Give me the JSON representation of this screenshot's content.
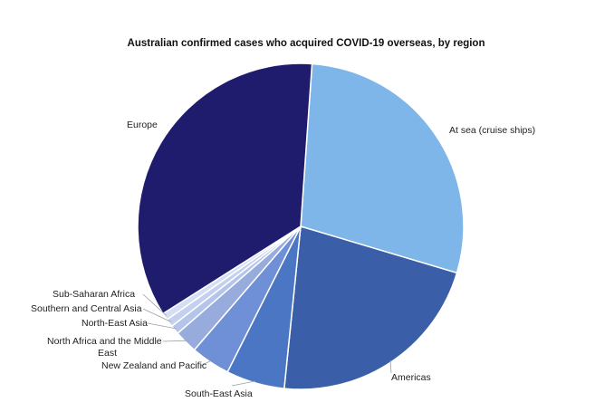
{
  "chart_data": {
    "type": "pie",
    "title": "Australian confirmed cases who acquired COVID-19 overseas, by region",
    "start_angle_deg": 4,
    "slices": [
      {
        "label": "At sea (cruise ships)",
        "value": 28.5,
        "color": "#7fb6ea"
      },
      {
        "label": "Americas",
        "value": 22.0,
        "color": "#3a5fa8"
      },
      {
        "label": "South-East Asia",
        "value": 5.8,
        "color": "#4a76c4"
      },
      {
        "label": "New Zealand and Pacific",
        "value": 3.9,
        "color": "#6f8fd6"
      },
      {
        "label": "North Africa and the Middle East",
        "value": 2.3,
        "color": "#97acdc"
      },
      {
        "label": "North-East Asia",
        "value": 0.9,
        "color": "#b4c4ea"
      },
      {
        "label": "Southern and Central Asia",
        "value": 0.8,
        "color": "#c4d0ee"
      },
      {
        "label": "Sub-Saharan Africa",
        "value": 0.7,
        "color": "#d6def3"
      },
      {
        "label": "Europe",
        "value": 35.1,
        "color": "#1f1c6e"
      }
    ]
  }
}
